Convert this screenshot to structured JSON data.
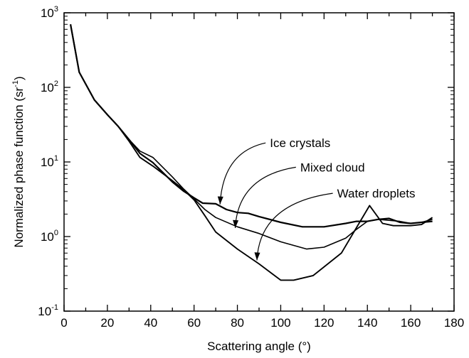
{
  "chart_data": {
    "type": "line",
    "xlabel": "Scattering angle (°)",
    "ylabel": "Normalized phase function (sr",
    "ylabel_sup": "-1",
    "ylabel_close": ")",
    "xlim": [
      0,
      180
    ],
    "ylim": [
      0.1,
      1000
    ],
    "y_scale": "log",
    "grid": false,
    "legend": "none",
    "x_ticks": [
      {
        "value": 0,
        "label": "0"
      },
      {
        "value": 20,
        "label": "20"
      },
      {
        "value": 40,
        "label": "40"
      },
      {
        "value": 60,
        "label": "60"
      },
      {
        "value": 80,
        "label": "80"
      },
      {
        "value": 100,
        "label": "100"
      },
      {
        "value": 120,
        "label": "120"
      },
      {
        "value": 140,
        "label": "140"
      },
      {
        "value": 160,
        "label": "160"
      },
      {
        "value": 180,
        "label": "180"
      }
    ],
    "y_ticks": [
      {
        "value": 0.1,
        "base": "10",
        "exp": "-1"
      },
      {
        "value": 1,
        "base": "10",
        "exp": "0"
      },
      {
        "value": 10,
        "base": "10",
        "exp": "1"
      },
      {
        "value": 100,
        "base": "10",
        "exp": "2"
      },
      {
        "value": 1000,
        "base": "10",
        "exp": "3"
      }
    ],
    "series": [
      {
        "name": "Ice crystals",
        "x": [
          3,
          7,
          14,
          20,
          25,
          30,
          35,
          41,
          50,
          55,
          60,
          64,
          70,
          75,
          80,
          85,
          90,
          100,
          110,
          120,
          130,
          135,
          140,
          145,
          150,
          155,
          160,
          165,
          170
        ],
        "y": [
          700,
          160,
          68,
          43,
          30,
          20,
          13,
          9.8,
          5.4,
          4.1,
          3.3,
          2.8,
          2.75,
          2.3,
          2.1,
          2.05,
          1.85,
          1.55,
          1.35,
          1.35,
          1.5,
          1.6,
          1.6,
          1.7,
          1.75,
          1.55,
          1.5,
          1.55,
          1.6
        ]
      },
      {
        "name": "Mixed cloud",
        "x": [
          3,
          7,
          14,
          20,
          25,
          30,
          35,
          41,
          50,
          55,
          60,
          65,
          70,
          80,
          90,
          100,
          112,
          120,
          130,
          135,
          140,
          145,
          150,
          155,
          160,
          165,
          170
        ],
        "y": [
          700,
          160,
          68,
          43,
          30,
          20,
          14,
          11.5,
          6.3,
          4.4,
          3.2,
          2.3,
          1.8,
          1.35,
          1.1,
          0.85,
          0.68,
          0.72,
          0.95,
          1.25,
          1.6,
          1.7,
          1.65,
          1.6,
          1.5,
          1.55,
          1.7
        ]
      },
      {
        "name": "Water droplets",
        "x": [
          3,
          7,
          14,
          20,
          25,
          30,
          35,
          41,
          50,
          55,
          60,
          65,
          70,
          80,
          90,
          100,
          106,
          115,
          128,
          141,
          147,
          152,
          160,
          165,
          170
        ],
        "y": [
          700,
          160,
          68,
          43,
          30,
          19,
          11.5,
          8.8,
          5.6,
          4.3,
          3.1,
          1.9,
          1.15,
          0.68,
          0.43,
          0.26,
          0.26,
          0.3,
          0.6,
          2.6,
          1.5,
          1.4,
          1.4,
          1.45,
          1.8
        ]
      }
    ],
    "annotations": [
      {
        "text": "Ice crystals",
        "text_x": 95,
        "text_y": 18,
        "arrow_x": 72,
        "arrow_y": 2.7
      },
      {
        "text": "Mixed cloud",
        "text_x": 109,
        "text_y": 8.5,
        "arrow_x": 79,
        "arrow_y": 1.3
      },
      {
        "text": "Water droplets",
        "text_x": 126,
        "text_y": 3.8,
        "arrow_x": 89,
        "arrow_y": 0.48
      }
    ]
  }
}
